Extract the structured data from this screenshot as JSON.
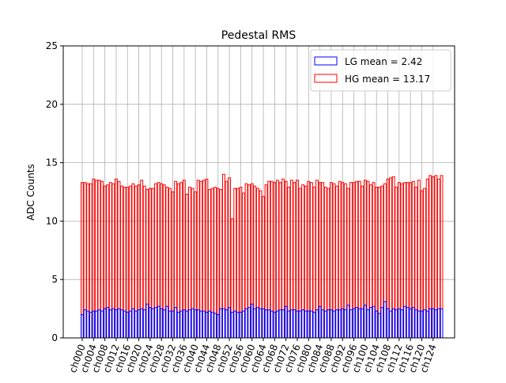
{
  "chart_data": {
    "type": "bar",
    "title": "Pedestal RMS",
    "y_label": "ADC Counts",
    "categories": [
      "ch000",
      null,
      null,
      null,
      "ch004",
      null,
      null,
      null,
      "ch008",
      null,
      null,
      null,
      "ch012",
      null,
      null,
      null,
      "ch016",
      null,
      null,
      null,
      "ch020",
      null,
      null,
      null,
      "ch024",
      null,
      null,
      null,
      "ch028",
      null,
      null,
      null,
      "ch032",
      null,
      null,
      null,
      "ch036",
      null,
      null,
      null,
      "ch040",
      null,
      null,
      null,
      "ch044",
      null,
      null,
      null,
      "ch048",
      null,
      null,
      null,
      "ch052",
      null,
      null,
      null,
      "ch056",
      null,
      null,
      null,
      "ch060",
      null,
      null,
      null,
      "ch064",
      null,
      null,
      null,
      "ch068",
      null,
      null,
      null,
      "ch072",
      null,
      null,
      null,
      "ch076",
      null,
      null,
      null,
      "ch080",
      null,
      null,
      null,
      "ch084",
      null,
      null,
      null,
      "ch088",
      null,
      null,
      null,
      "ch092",
      null,
      null,
      null,
      "ch096",
      null,
      null,
      null,
      "ch100",
      null,
      null,
      null,
      "ch104",
      null,
      null,
      null,
      "ch108",
      null,
      null,
      null,
      "ch112",
      null,
      null,
      null,
      "ch116",
      null,
      null,
      null,
      "ch120",
      null,
      null,
      null,
      "ch124",
      null,
      null,
      null
    ],
    "series": [
      {
        "name": "HG mean = 13.17",
        "color": "red",
        "values": [
          13.3,
          13.3,
          13.2,
          13.2,
          13.6,
          13.5,
          13.5,
          13.4,
          13.0,
          13.1,
          13.3,
          13.2,
          13.6,
          13.4,
          13.0,
          12.9,
          12.9,
          13.0,
          13.2,
          13.0,
          13.1,
          13.5,
          13.0,
          12.7,
          12.8,
          12.8,
          13.2,
          13.3,
          13.2,
          13.1,
          12.9,
          12.8,
          12.5,
          13.4,
          13.2,
          13.3,
          13.5,
          12.3,
          12.9,
          12.8,
          12.5,
          13.5,
          13.4,
          13.5,
          13.6,
          12.7,
          12.8,
          12.9,
          12.8,
          12.7,
          14.0,
          13.4,
          13.7,
          10.2,
          12.8,
          12.8,
          12.9,
          12.4,
          13.2,
          13.1,
          13.2,
          13.0,
          12.8,
          12.6,
          12.1,
          13.1,
          13.4,
          13.4,
          13.3,
          13.5,
          13.3,
          13.6,
          13.4,
          12.9,
          13.5,
          13.3,
          13.5,
          12.8,
          13.1,
          13.0,
          13.4,
          13.3,
          12.9,
          13.5,
          13.3,
          13.3,
          12.9,
          12.8,
          13.3,
          13.2,
          13.0,
          13.4,
          13.3,
          13.2,
          12.8,
          13.3,
          13.3,
          13.4,
          13.4,
          13.0,
          13.5,
          13.4,
          13.1,
          13.3,
          12.9,
          12.9,
          13.0,
          13.2,
          13.6,
          13.7,
          13.8,
          12.9,
          13.3,
          13.2,
          13.3,
          13.3,
          13.3,
          13.4,
          12.9,
          13.5,
          12.6,
          12.8,
          13.6,
          13.9,
          13.8,
          13.9,
          13.6,
          13.9
        ]
      },
      {
        "name": "LG mean = 2.42",
        "color": "blue",
        "values": [
          2.0,
          2.4,
          2.3,
          2.2,
          2.3,
          2.3,
          2.4,
          2.3,
          2.5,
          2.6,
          2.4,
          2.5,
          2.4,
          2.5,
          2.4,
          2.3,
          2.2,
          2.3,
          2.5,
          2.3,
          2.4,
          2.5,
          2.4,
          2.9,
          2.6,
          2.5,
          2.6,
          2.7,
          2.5,
          2.4,
          2.7,
          2.3,
          2.3,
          2.6,
          2.2,
          2.3,
          2.4,
          2.3,
          2.4,
          2.5,
          2.4,
          2.4,
          2.3,
          2.3,
          2.2,
          2.3,
          2.2,
          2.1,
          2.0,
          2.5,
          2.5,
          2.4,
          2.6,
          2.2,
          2.3,
          2.2,
          2.2,
          2.3,
          2.5,
          2.6,
          2.9,
          2.5,
          2.6,
          2.5,
          2.5,
          2.4,
          2.4,
          2.3,
          2.2,
          2.3,
          2.4,
          2.4,
          2.7,
          2.3,
          2.4,
          2.4,
          2.3,
          2.3,
          2.4,
          2.3,
          2.3,
          2.3,
          2.2,
          2.4,
          2.7,
          2.4,
          2.3,
          2.4,
          2.4,
          2.3,
          2.4,
          2.4,
          2.5,
          2.4,
          2.8,
          2.4,
          2.5,
          2.6,
          2.5,
          2.5,
          2.8,
          2.4,
          2.6,
          2.7,
          2.3,
          2.1,
          2.6,
          3.1,
          2.5,
          2.3,
          2.5,
          2.4,
          2.5,
          2.4,
          2.7,
          2.6,
          2.5,
          2.6,
          2.4,
          2.3,
          2.3,
          2.4,
          2.3,
          2.5,
          2.5,
          2.4,
          2.5,
          2.5
        ]
      }
    ],
    "ylim": [
      0,
      25
    ],
    "yticks": [
      0,
      5,
      10,
      15,
      20,
      25
    ],
    "grid": true,
    "legend": "upper right"
  }
}
